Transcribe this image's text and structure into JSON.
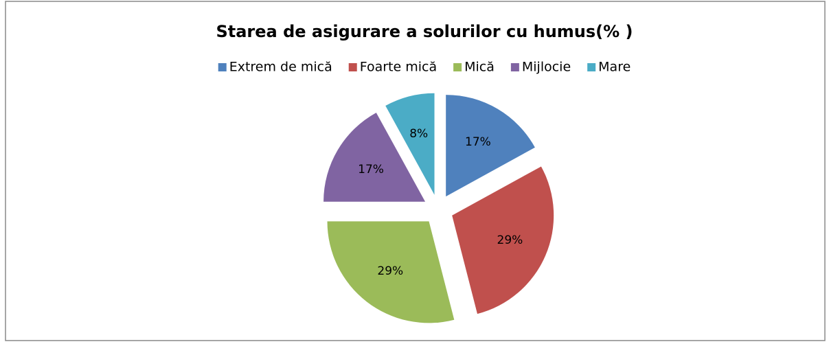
{
  "chart_data": {
    "type": "pie",
    "title": "Starea de asigurare a solurilor cu humus(% )",
    "categories": [
      "Extrem de mică",
      "Foarte mică",
      "Mică",
      "Mijlocie",
      "Mare"
    ],
    "values": [
      17,
      29,
      29,
      17,
      8
    ],
    "value_labels": [
      "17%",
      "29%",
      "29%",
      "17%",
      "8%"
    ],
    "colors": [
      "#4f81bd",
      "#c0504d",
      "#9bbb59",
      "#8064a2",
      "#4bacc6"
    ],
    "legend": "top"
  }
}
